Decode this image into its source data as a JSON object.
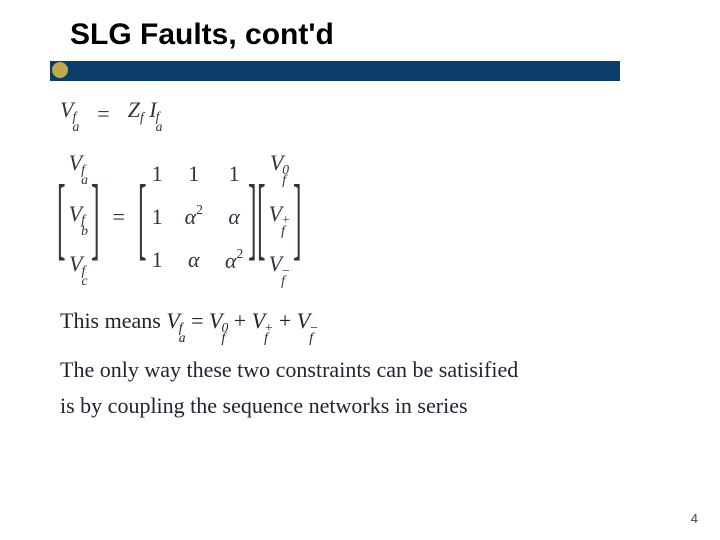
{
  "title": "SLG Faults, cont'd",
  "colors": {
    "underline": "#0b3d6b",
    "dot": "#c0a94a",
    "text": "#333344",
    "background": "#ffffff"
  },
  "typography": {
    "title_font": "Arial",
    "title_size_pt": 30,
    "title_weight": "bold",
    "body_font": "Times New Roman",
    "body_size_pt": 22
  },
  "eq1": {
    "lhs_base": "V",
    "lhs_sub": "a",
    "lhs_sup": "f",
    "rhs_Z": "Z",
    "rhs_Z_sub": "f",
    "rhs_I": "I",
    "rhs_I_sub": "a",
    "rhs_I_sup": "f"
  },
  "matrix": {
    "left": [
      {
        "base": "V",
        "sub": "a",
        "sup": "f"
      },
      {
        "base": "V",
        "sub": "b",
        "sup": "f"
      },
      {
        "base": "V",
        "sub": "c",
        "sup": "f"
      }
    ],
    "A": [
      [
        "1",
        "1",
        "1"
      ],
      [
        "1",
        "α²",
        "α"
      ],
      [
        "1",
        "α",
        "α²"
      ]
    ],
    "right": [
      {
        "base": "V",
        "sub": "f",
        "sup": "0"
      },
      {
        "base": "V",
        "sub": "f",
        "sup": "+"
      },
      {
        "base": "V",
        "sub": "f",
        "sup": "−"
      }
    ]
  },
  "text": {
    "this_means": "This means ",
    "conclude1": "The only way these two constraints can be satisified",
    "conclude2": "is by coupling the sequence networks in series"
  },
  "inline_eq": {
    "lhs": {
      "base": "V",
      "sub": "a",
      "sup": "f"
    },
    "terms": [
      {
        "base": "V",
        "sub": "f",
        "sup": "0"
      },
      {
        "base": "V",
        "sub": "f",
        "sup": "+"
      },
      {
        "base": "V",
        "sub": "f",
        "sup": "−"
      }
    ]
  },
  "page_number": "4",
  "equals": "="
}
